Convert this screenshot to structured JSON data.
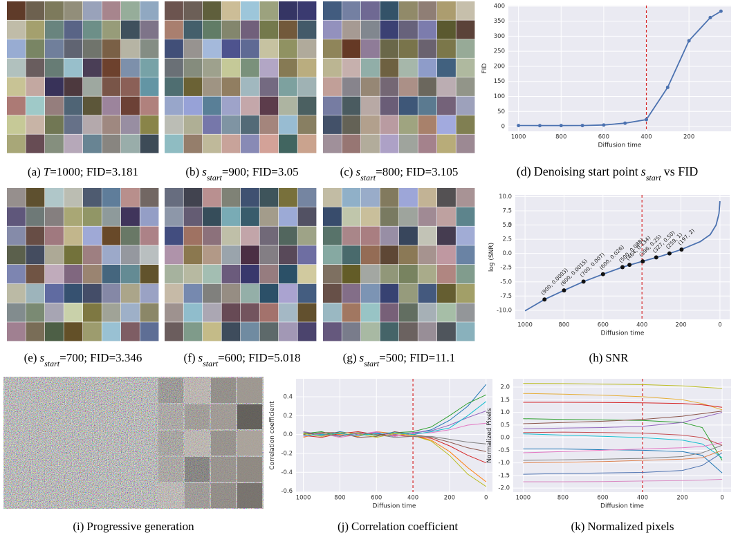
{
  "image_panels": [
    {
      "label": "(a)",
      "var": "T",
      "post": "=1000; FID=3.181"
    },
    {
      "label": "(b)",
      "var": "s",
      "sub": "start",
      "post": "=900; FID=3.05"
    },
    {
      "label": "(c)",
      "var": "s",
      "sub": "start",
      "post": "=800; FID=3.105"
    },
    {
      "label": "(e)",
      "var": "s",
      "sub": "start",
      "post": "=700; FID=3.346"
    },
    {
      "label": "(f)",
      "var": "s",
      "sub": "start",
      "post": "=600; FID=5.018"
    },
    {
      "label": "(g)",
      "var": "s",
      "sub": "start",
      "post": "=500; FID=11.1"
    },
    {
      "label": "(i)",
      "pre": "Progressive generation"
    }
  ],
  "chart_data": [
    {
      "type": "line",
      "caption": {
        "label": "(d)",
        "pre": "Denoising start point",
        "var": "s",
        "sub": "start",
        "post": "vs FID"
      },
      "xlabel": "Diffusion time",
      "ylabel": "FID",
      "x": [
        1000,
        900,
        800,
        700,
        600,
        500,
        400,
        300,
        200,
        100,
        50
      ],
      "series": [
        {
          "color": "#4c72b0",
          "markers": true,
          "values": [
            3.181,
            3.05,
            3.105,
            3.346,
            5.018,
            11.1,
            23,
            130,
            285,
            362,
            383
          ]
        }
      ],
      "xlim": [
        1047.5,
        2.5
      ],
      "xticks": [
        1000,
        800,
        600,
        400,
        200
      ],
      "ylim": [
        -16,
        402
      ],
      "yticks": [
        0,
        50,
        100,
        150,
        200,
        250,
        300,
        350,
        400
      ],
      "vline": {
        "x": 400,
        "color": "#d62728"
      },
      "grid": true
    },
    {
      "type": "line",
      "caption": {
        "label": "(h)",
        "pre": "SNR"
      },
      "xlabel": "Diffusion time",
      "ylabel": "log (SNR)",
      "x": [
        1000,
        900,
        800,
        700,
        600,
        500,
        400,
        300,
        200,
        100,
        50,
        20,
        5,
        0
      ],
      "series": [
        {
          "color": "#4c72b0",
          "values": [
            -10.1,
            -8.1,
            -6.5,
            -4.96,
            -3.65,
            -2.42,
            -1.4,
            -0.45,
            0.66,
            2.1,
            3.3,
            5,
            7,
            9.2
          ]
        }
      ],
      "annotations": [
        {
          "text": "(900, 0.0003)",
          "x": 900,
          "y": -8.1
        },
        {
          "text": "(800, 0.0015)",
          "x": 800,
          "y": -6.5
        },
        {
          "text": "(700, 0.007)",
          "x": 700,
          "y": -4.96
        },
        {
          "text": "(600, 0.026)",
          "x": 600,
          "y": -3.65
        },
        {
          "text": "(500, 0.088)",
          "x": 500,
          "y": -2.42
        },
        {
          "text": "(464, 0.134)",
          "x": 464,
          "y": -2.0
        },
        {
          "text": "(396, 0.25)",
          "x": 396,
          "y": -1.39
        },
        {
          "text": "(327, 0.50)",
          "x": 327,
          "y": -0.69
        },
        {
          "text": "(259, 1)",
          "x": 259,
          "y": 0.0
        },
        {
          "text": "(197, 2)",
          "x": 197,
          "y": 0.69
        }
      ],
      "xlim": [
        1050,
        -50
      ],
      "xticks": [
        1000,
        800,
        600,
        400,
        200,
        0
      ],
      "ylim": [
        -11.6,
        10.3
      ],
      "yticks": [
        {
          "value": 10,
          "label": "10.0"
        },
        7.5,
        5,
        {
          "value": 5,
          "label": "5.0"
        },
        2.5,
        {
          "value": 0,
          "label": "0.0"
        },
        -2.5,
        {
          "value": -5,
          "label": "-5.0"
        },
        -7.5,
        {
          "value": -10,
          "label": "-10.0"
        }
      ],
      "vline": {
        "x": 400,
        "color": "#d62728"
      },
      "grid": true
    },
    {
      "type": "line",
      "caption": {
        "label": "(j)",
        "pre": "Correlation coefficient"
      },
      "xlabel": "Diffusion time",
      "ylabel": "Correlation coefficient",
      "x": [
        1000,
        900,
        800,
        700,
        600,
        500,
        400,
        300,
        200,
        100,
        0
      ],
      "series": [
        {
          "color": "#1f77b4",
          "values": [
            0.02,
            -0.01,
            0.03,
            0,
            0.01,
            -0.02,
            0.01,
            0.05,
            0.15,
            0.3,
            0.53
          ]
        },
        {
          "color": "#ff7f0e",
          "values": [
            -0.03,
            0.02,
            0,
            -0.02,
            0.03,
            0.01,
            -0.01,
            -0.06,
            -0.18,
            -0.35,
            -0.5
          ]
        },
        {
          "color": "#2ca02c",
          "values": [
            0.01,
            0.03,
            -0.02,
            0.02,
            -0.01,
            0.02,
            0.03,
            0.08,
            0.2,
            0.33,
            0.42
          ]
        },
        {
          "color": "#d62728",
          "values": [
            -0.01,
            -0.03,
            0.01,
            0.03,
            0,
            -0.01,
            -0.02,
            -0.04,
            -0.12,
            -0.22,
            -0.3
          ]
        },
        {
          "color": "#9467bd",
          "values": [
            0.03,
            0,
            -0.01,
            0.01,
            0.02,
            0,
            0.02,
            0.04,
            0.1,
            0.18,
            0.25
          ]
        },
        {
          "color": "#8c564b",
          "values": [
            0,
            0.02,
            0.02,
            -0.03,
            -0.02,
            0.03,
            0,
            -0.03,
            -0.08,
            -0.14,
            -0.18
          ]
        },
        {
          "color": "#e377c2",
          "values": [
            -0.02,
            0.01,
            -0.03,
            0,
            0.03,
            -0.02,
            0.01,
            0.02,
            0.05,
            0.1,
            0.12
          ]
        },
        {
          "color": "#bcbd22",
          "values": [
            0.01,
            -0.02,
            0.02,
            0.01,
            -0.03,
            0.01,
            -0.01,
            -0.07,
            -0.22,
            -0.42,
            -0.55
          ]
        },
        {
          "color": "#17becf",
          "values": [
            -0.01,
            0,
            0.01,
            -0.01,
            0.01,
            0.02,
            0,
            0.03,
            0.07,
            0.2,
            0.35
          ]
        },
        {
          "color": "#7f7f7f",
          "values": [
            0.02,
            0.01,
            -0.02,
            0.02,
            0,
            -0.03,
            -0.02,
            -0.02,
            -0.05,
            -0.08,
            -0.1
          ]
        }
      ],
      "xlim": [
        1040,
        -35
      ],
      "xticks": [
        1000,
        800,
        600,
        400,
        200,
        0
      ],
      "ylim": [
        -0.61,
        0.59
      ],
      "yticks": [
        0.4,
        0.2,
        {
          "value": 0,
          "label": "0.0"
        },
        -0.2,
        -0.4,
        -0.6
      ],
      "vline": {
        "x": 400,
        "color": "#d62728"
      },
      "grid": true
    },
    {
      "type": "line",
      "caption": {
        "label": "(k)",
        "pre": "Normalized pixels"
      },
      "xlabel": "Diffusion time",
      "ylabel": "Normalized Pixels",
      "x": [
        1000,
        800,
        600,
        400,
        200,
        100,
        0
      ],
      "series": [
        {
          "color": "#bcbd22",
          "values": [
            2.15,
            2.14,
            2.12,
            2.1,
            2.05,
            2.0,
            1.95
          ]
        },
        {
          "color": "#e5ae38",
          "values": [
            1.75,
            1.72,
            1.68,
            1.62,
            1.5,
            1.35,
            1.1
          ]
        },
        {
          "color": "#d62728",
          "values": [
            1.4,
            1.4,
            1.39,
            1.38,
            1.35,
            1.3,
            1.2
          ]
        },
        {
          "color": "#2ca02c",
          "values": [
            0.75,
            0.72,
            0.7,
            0.68,
            0.6,
            0.4,
            -0.9
          ]
        },
        {
          "color": "#8c564b",
          "values": [
            0.55,
            0.6,
            0.65,
            0.72,
            0.85,
            0.95,
            1.05
          ]
        },
        {
          "color": "#9467bd",
          "values": [
            0.35,
            0.38,
            0.4,
            0.45,
            0.6,
            0.8,
            1.0
          ]
        },
        {
          "color": "#17becf",
          "values": [
            0.15,
            0.1,
            0.05,
            0,
            -0.1,
            -0.25,
            -0.8
          ]
        },
        {
          "color": "#1f77b4",
          "values": [
            -0.45,
            -0.45,
            -0.48,
            -0.5,
            -0.55,
            -0.7,
            -1.4
          ]
        },
        {
          "color": "#e377c2",
          "values": [
            -0.6,
            -0.55,
            -0.5,
            -0.45,
            -0.4,
            -0.35,
            -0.2
          ]
        },
        {
          "color": "#7f7f7f",
          "values": [
            -0.9,
            -0.88,
            -0.85,
            -0.82,
            -0.75,
            -0.6,
            -0.3
          ]
        },
        {
          "color": "#c44e52",
          "values": [
            0.2,
            0.22,
            0.2,
            0.18,
            0.1,
            0,
            -0.3
          ]
        },
        {
          "color": "#4c72b0",
          "values": [
            -1.45,
            -1.42,
            -1.4,
            -1.38,
            -1.3,
            -1.1,
            -0.6
          ]
        },
        {
          "color": "#dd8452",
          "values": [
            -1.0,
            -0.98,
            -0.95,
            -0.9,
            -0.85,
            -0.8,
            -0.5
          ]
        },
        {
          "color": "#da8bc3",
          "values": [
            -1.75,
            -1.75,
            -1.74,
            -1.72,
            -1.7,
            -1.68,
            -1.65
          ]
        }
      ],
      "xlim": [
        1050,
        -45
      ],
      "xticks": [
        1000,
        800,
        600,
        400,
        200,
        0
      ],
      "ylim": [
        -2.16,
        2.33
      ],
      "yticks": [
        {
          "value": 2,
          "label": "2.0"
        },
        1.5,
        {
          "value": 1,
          "label": "1.0"
        },
        0.5,
        {
          "value": 0,
          "label": "0.0"
        },
        -0.5,
        {
          "value": -1,
          "label": "-1.0"
        },
        -1.5,
        {
          "value": -2,
          "label": "-2.0"
        }
      ],
      "vline": {
        "x": 400,
        "color": "#d62728"
      },
      "grid": true
    }
  ]
}
